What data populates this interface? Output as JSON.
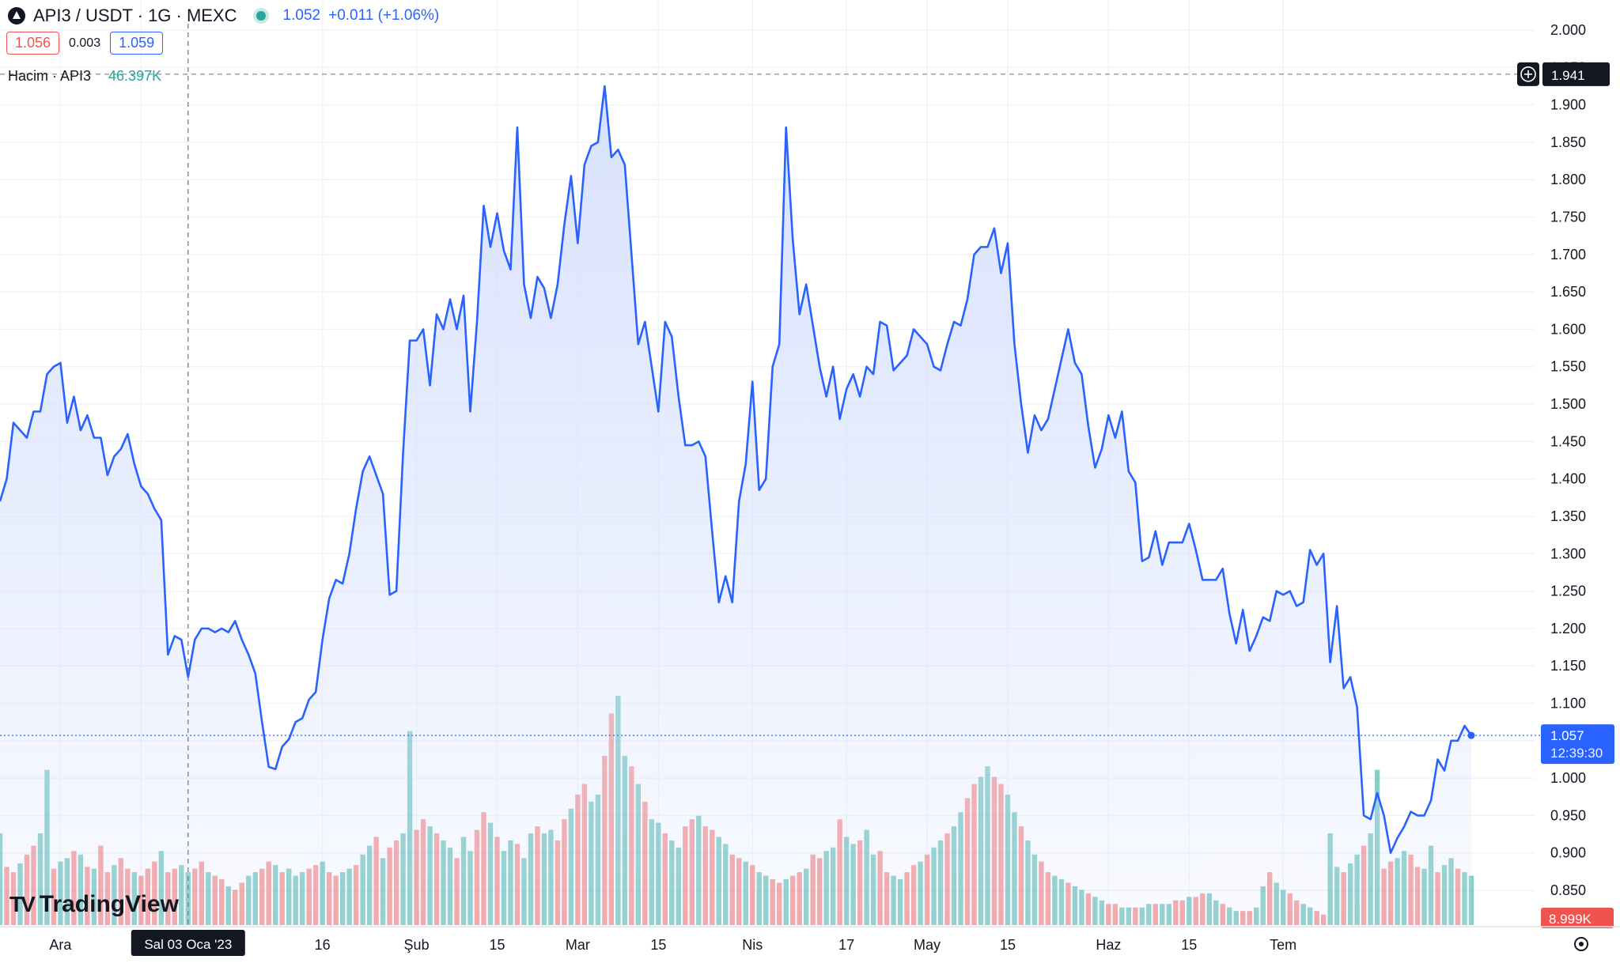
{
  "header": {
    "symbol": "API3 / USDT · 1G · MEXC",
    "price": "1.052",
    "change": "+0.011 (+1.06%)"
  },
  "quotes": {
    "sell": "1.056",
    "spread": "0.003",
    "buy": "1.059"
  },
  "volume_legend": {
    "label": "Hacim · API3",
    "value": "46.397K"
  },
  "crosshair": {
    "date_label": "Sal 03 Oca '23",
    "price_label": "1.941",
    "price": 1.941,
    "x_index": 28
  },
  "last_price": {
    "value_label": "1.057",
    "countdown": "12:39:30",
    "value": 1.057
  },
  "volume_badge": "8.999K",
  "logo_text": "TradingView",
  "colors": {
    "line": "#2962ff",
    "fill": "#d6e0fd",
    "up": "#26a69a",
    "down": "#ef5350",
    "grid": "#f0f3fa"
  },
  "chart_data": {
    "type": "area",
    "title": "",
    "ylim": [
      0.8,
      2.03
    ],
    "grid": true,
    "y_ticks": [
      "2.000",
      "1.950",
      "1.900",
      "1.850",
      "1.800",
      "1.750",
      "1.700",
      "1.650",
      "1.600",
      "1.550",
      "1.500",
      "1.450",
      "1.400",
      "1.350",
      "1.300",
      "1.250",
      "1.200",
      "1.150",
      "1.100",
      "1.050",
      "1.000",
      "0.950",
      "0.900",
      "0.850"
    ],
    "x_ticks": [
      {
        "label": "Ara",
        "index": 9
      },
      {
        "label": "15",
        "index": 21
      },
      {
        "label": "16",
        "index": 48
      },
      {
        "label": "Şub",
        "index": 62
      },
      {
        "label": "15",
        "index": 74
      },
      {
        "label": "Mar",
        "index": 86
      },
      {
        "label": "15",
        "index": 98
      },
      {
        "label": "Nis",
        "index": 112
      },
      {
        "label": "17",
        "index": 126
      },
      {
        "label": "May",
        "index": 138
      },
      {
        "label": "15",
        "index": 150
      },
      {
        "label": "Haz",
        "index": 165
      },
      {
        "label": "15",
        "index": 177
      },
      {
        "label": "Tem",
        "index": 191
      }
    ],
    "series": [
      {
        "values": [
          1.37,
          1.4,
          1.475,
          1.465,
          1.455,
          1.49,
          1.49,
          1.54,
          1.55,
          1.555,
          1.475,
          1.51,
          1.465,
          1.485,
          1.455,
          1.455,
          1.405,
          1.43,
          1.44,
          1.46,
          1.42,
          1.39,
          1.38,
          1.36,
          1.345,
          1.165,
          1.19,
          1.185,
          1.135,
          1.185,
          1.2,
          1.2,
          1.195,
          1.2,
          1.195,
          1.21,
          1.185,
          1.165,
          1.14,
          1.075,
          1.015,
          1.012,
          1.042,
          1.052,
          1.075,
          1.08,
          1.105,
          1.115,
          1.185,
          1.24,
          1.265,
          1.26,
          1.3,
          1.36,
          1.41,
          1.43,
          1.405,
          1.38,
          1.245,
          1.25,
          1.435,
          1.585,
          1.585,
          1.6,
          1.525,
          1.62,
          1.6,
          1.64,
          1.6,
          1.645,
          1.49,
          1.61,
          1.765,
          1.71,
          1.755,
          1.705,
          1.68,
          1.87,
          1.66,
          1.615,
          1.67,
          1.655,
          1.615,
          1.66,
          1.74,
          1.805,
          1.715,
          1.82,
          1.845,
          1.85,
          1.925,
          1.83,
          1.84,
          1.82,
          1.7,
          1.58,
          1.61,
          1.55,
          1.49,
          1.61,
          1.59,
          1.51,
          1.445,
          1.445,
          1.45,
          1.43,
          1.33,
          1.235,
          1.27,
          1.235,
          1.37,
          1.42,
          1.53,
          1.385,
          1.4,
          1.55,
          1.58,
          1.87,
          1.72,
          1.62,
          1.66,
          1.605,
          1.55,
          1.51,
          1.55,
          1.48,
          1.52,
          1.54,
          1.51,
          1.55,
          1.54,
          1.61,
          1.605,
          1.545,
          1.555,
          1.565,
          1.6,
          1.59,
          1.58,
          1.55,
          1.545,
          1.58,
          1.61,
          1.605,
          1.64,
          1.7,
          1.71,
          1.71,
          1.735,
          1.675,
          1.715,
          1.58,
          1.5,
          1.435,
          1.485,
          1.465,
          1.48,
          1.52,
          1.56,
          1.6,
          1.555,
          1.54,
          1.47,
          1.415,
          1.44,
          1.485,
          1.455,
          1.49,
          1.41,
          1.395,
          1.29,
          1.295,
          1.33,
          1.285,
          1.315,
          1.315,
          1.315,
          1.34,
          1.305,
          1.265,
          1.265,
          1.265,
          1.28,
          1.22,
          1.18,
          1.225,
          1.17,
          1.19,
          1.215,
          1.21,
          1.25,
          1.245,
          1.25,
          1.23,
          1.235,
          1.305,
          1.285,
          1.3,
          1.155,
          1.23,
          1.12,
          1.135,
          1.095,
          0.95,
          0.945,
          0.98,
          0.95,
          0.9,
          0.92,
          0.935,
          0.955,
          0.95,
          0.95,
          0.97,
          1.025,
          1.01,
          1.05,
          1.05,
          1.07,
          1.057
        ]
      }
    ],
    "volume": {
      "values": [
        52,
        33,
        30,
        35,
        40,
        45,
        52,
        88,
        32,
        36,
        38,
        42,
        40,
        33,
        32,
        45,
        30,
        34,
        38,
        32,
        30,
        28,
        32,
        36,
        42,
        30,
        32,
        34,
        30,
        32,
        36,
        30,
        28,
        26,
        22,
        20,
        24,
        28,
        30,
        32,
        36,
        34,
        30,
        32,
        28,
        30,
        32,
        34,
        36,
        30,
        28,
        30,
        32,
        34,
        40,
        45,
        50,
        38,
        44,
        48,
        52,
        110,
        54,
        60,
        56,
        52,
        48,
        44,
        38,
        50,
        42,
        54,
        64,
        58,
        50,
        42,
        48,
        46,
        38,
        52,
        56,
        52,
        54,
        48,
        60,
        66,
        74,
        80,
        70,
        74,
        96,
        120,
        130,
        96,
        90,
        80,
        70,
        60,
        58,
        52,
        48,
        44,
        56,
        60,
        62,
        56,
        54,
        50,
        46,
        40,
        38,
        36,
        34,
        30,
        28,
        26,
        24,
        26,
        28,
        30,
        32,
        40,
        38,
        42,
        44,
        60,
        50,
        46,
        48,
        54,
        40,
        42,
        30,
        28,
        26,
        30,
        34,
        36,
        40,
        44,
        48,
        52,
        56,
        64,
        72,
        80,
        84,
        90,
        84,
        80,
        74,
        64,
        56,
        48,
        40,
        36,
        30,
        28,
        26,
        24,
        22,
        20,
        18,
        16,
        14,
        12,
        12,
        10,
        10,
        10,
        10,
        12,
        12,
        12,
        12,
        14,
        14,
        16,
        16,
        18,
        18,
        14,
        12,
        10,
        8,
        8,
        8,
        10,
        22,
        30,
        24,
        20,
        18,
        14,
        12,
        10,
        8,
        6
      ],
      "directions": "uddudduuduudududduddudddudduudduddudduudduduuuddudduuduududduudduduuduudduduuduuduuddudduudduududuuduuddudduudduduudduddudduuduuduudduudduduuduudduudduuduudduuduuduudduuduuduuddudduuduudduuduudduudduuduuduudduudduuduuduudd"
    }
  }
}
